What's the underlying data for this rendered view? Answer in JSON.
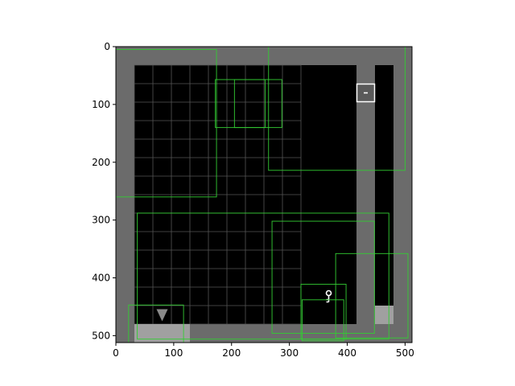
{
  "figure": {
    "background": "#ffffff",
    "wall_color": "#6b6b6b",
    "floor_color": "#000000",
    "grid_color": "#555555",
    "box_color": "#33cc33",
    "door_color": "#a0a0a0",
    "agent_color": "#8a8a8a",
    "key_color": "#ffffff",
    "locked_door_icon": "minus-icon",
    "key_icon": "key-icon",
    "agent_icon": "triangle-down-icon"
  },
  "chart_data": {
    "type": "image-plot",
    "title": "",
    "xlabel": "",
    "ylabel": "",
    "xlim": [
      0,
      512
    ],
    "ylim": [
      512,
      0
    ],
    "x_ticks": [
      {
        "value": 0,
        "label": "0"
      },
      {
        "value": 100,
        "label": "100"
      },
      {
        "value": 200,
        "label": "200"
      },
      {
        "value": 300,
        "label": "300"
      },
      {
        "value": 400,
        "label": "400"
      },
      {
        "value": 500,
        "label": "500"
      }
    ],
    "y_ticks": [
      {
        "value": 0,
        "label": "0"
      },
      {
        "value": 100,
        "label": "100"
      },
      {
        "value": 200,
        "label": "200"
      },
      {
        "value": 300,
        "label": "300"
      },
      {
        "value": 400,
        "label": "400"
      },
      {
        "value": 500,
        "label": "500"
      }
    ],
    "grid": {
      "x_start": 32,
      "y_start": 32,
      "cell": 32,
      "cols": 9,
      "rows": 14
    },
    "floor_regions": [
      {
        "x0": 32,
        "y0": 32,
        "x1": 416,
        "y1": 480
      },
      {
        "x0": 448,
        "y0": 32,
        "x1": 480,
        "y1": 448
      }
    ],
    "door_cells": [
      {
        "x0": 448,
        "y0": 448,
        "x1": 480,
        "y1": 480
      },
      {
        "x0": 32,
        "y0": 480,
        "x1": 128,
        "y1": 512
      }
    ],
    "locked_door": {
      "x0": 416,
      "y0": 64,
      "x1": 448,
      "y1": 96
    },
    "key": {
      "x": 368,
      "y": 432
    },
    "agent": {
      "x": 80,
      "y": 464
    },
    "boxes": [
      {
        "x0": 0,
        "y0": 5,
        "x1": 174,
        "y1": 260
      },
      {
        "x0": 264,
        "y0": 0,
        "x1": 500,
        "y1": 214
      },
      {
        "x0": 172,
        "y0": 57,
        "x1": 287,
        "y1": 140
      },
      {
        "x0": 205,
        "y0": 57,
        "x1": 258,
        "y1": 140
      },
      {
        "x0": 37,
        "y0": 288,
        "x1": 472,
        "y1": 506
      },
      {
        "x0": 270,
        "y0": 302,
        "x1": 447,
        "y1": 496
      },
      {
        "x0": 380,
        "y0": 358,
        "x1": 505,
        "y1": 504
      },
      {
        "x0": 320,
        "y0": 411,
        "x1": 398,
        "y1": 506
      },
      {
        "x0": 322,
        "y0": 438,
        "x1": 394,
        "y1": 509
      },
      {
        "x0": 22,
        "y0": 447,
        "x1": 117,
        "y1": 512
      }
    ]
  }
}
